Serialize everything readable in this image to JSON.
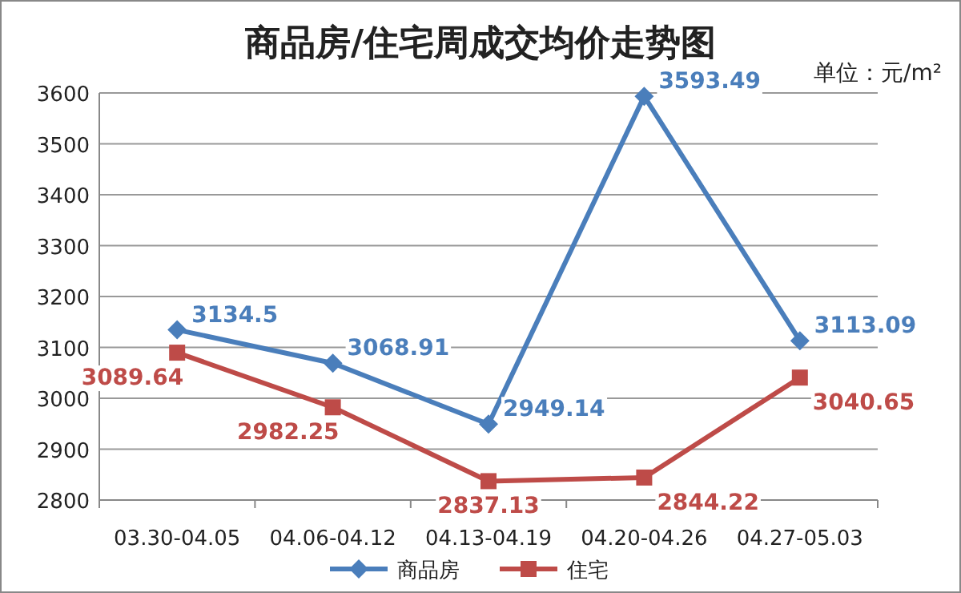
{
  "chart_data": {
    "type": "line",
    "title": "商品房/住宅周成交均价走势图",
    "annotations": [
      "单位：元/m²"
    ],
    "categories": [
      "03.30-04.05",
      "04.06-04.12",
      "04.13-04.19",
      "04.20-04.26",
      "04.27-05.03"
    ],
    "series": [
      {
        "name": "商品房",
        "color": "#4a7ebb",
        "marker": "diamond",
        "values": [
          3134.5,
          3068.91,
          2949.14,
          3593.49,
          3113.09
        ]
      },
      {
        "name": "住宅",
        "color": "#be4b48",
        "marker": "square",
        "values": [
          3089.64,
          2982.25,
          2837.13,
          2844.22,
          3040.65
        ]
      }
    ],
    "ylim": [
      2800,
      3600
    ],
    "yticks": [
      2800,
      2900,
      3000,
      3100,
      3200,
      3300,
      3400,
      3500,
      3600
    ],
    "grid": "y",
    "legend": "bottom",
    "data_labels": true,
    "line_style": "solid"
  }
}
